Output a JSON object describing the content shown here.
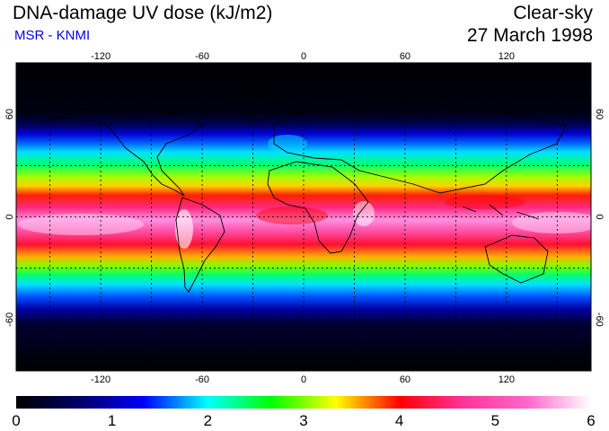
{
  "header": {
    "title": "DNA-damage UV dose (kJ/m2)",
    "source": "MSR - KNMI",
    "condition": "Clear-sky",
    "date": "27 March 1998"
  },
  "map": {
    "lon_ticks": [
      "-120",
      "-60",
      "0",
      "60",
      "120"
    ],
    "lon_values": [
      -120,
      -60,
      0,
      60,
      120
    ],
    "lat_ticks": [
      "60",
      "0",
      "-60"
    ],
    "lat_values": [
      60,
      0,
      -60
    ],
    "gridlines_dashed": true,
    "projection": "equirectangular"
  },
  "colorbar": {
    "labels": [
      "0",
      "1",
      "2",
      "3",
      "4",
      "5",
      "6"
    ],
    "min": 0,
    "max": 6,
    "colors": [
      "#000000",
      "#000066",
      "#0000ff",
      "#00ffff",
      "#00ff00",
      "#ffff00",
      "#ff0000",
      "#ff3399",
      "#ff66cc",
      "#ffffff"
    ]
  },
  "colors": {
    "title": "#000000",
    "source": "#0000ff",
    "coast": "#000000"
  }
}
